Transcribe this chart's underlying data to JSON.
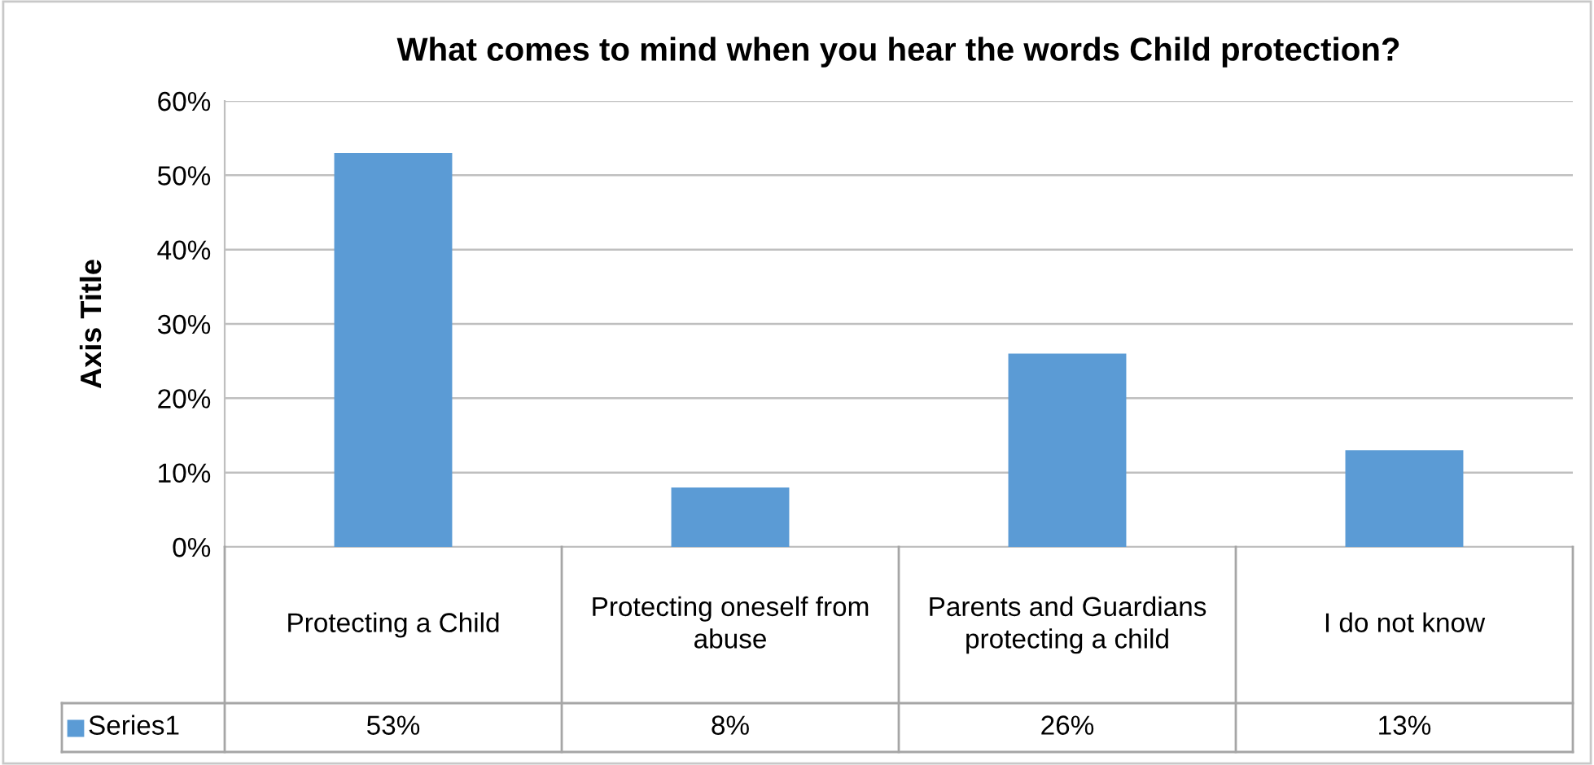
{
  "chart_data": {
    "type": "bar",
    "title": "What comes to mind when you hear the words Child protection?",
    "ylabel": "Axis Title",
    "categories": [
      "Protecting a Child",
      "Protecting oneself from abuse",
      "Parents and Guardians protecting a child",
      "I do not know"
    ],
    "series": [
      {
        "name": "Series1",
        "color": "#5b9bd5",
        "values": [
          53,
          8,
          26,
          13
        ],
        "value_labels": [
          "53%",
          "8%",
          "26%",
          "13%"
        ]
      }
    ],
    "ylim": [
      0,
      60
    ],
    "yticks": [
      {
        "value": 0,
        "label": "0%"
      },
      {
        "value": 10,
        "label": "10%"
      },
      {
        "value": 20,
        "label": "20%"
      },
      {
        "value": 30,
        "label": "30%"
      },
      {
        "value": 40,
        "label": "40%"
      },
      {
        "value": 50,
        "label": "50%"
      },
      {
        "value": 60,
        "label": "60%"
      }
    ],
    "grid": "y"
  }
}
